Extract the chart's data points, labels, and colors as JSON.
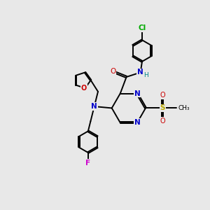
{
  "background_color": "#e8e8e8",
  "figsize": [
    3.0,
    3.0
  ],
  "dpi": 100,
  "atom_colors": {
    "C": "#000000",
    "N": "#0000cc",
    "O": "#cc0000",
    "S": "#bbaa00",
    "F": "#cc00cc",
    "Cl": "#00aa00",
    "H": "#008888"
  },
  "bond_color": "#000000",
  "bond_width": 1.4
}
